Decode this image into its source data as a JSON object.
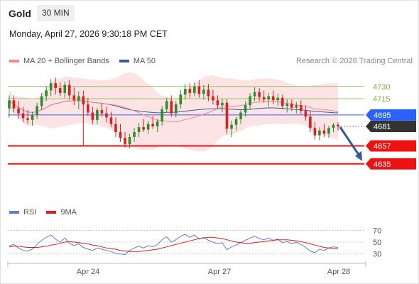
{
  "header": {
    "instrument": "Gold",
    "timeframe": "30 MIN",
    "datetime": "Monday, April 27, 2026 9:30:18 PM CET",
    "credit": "Research © 2026 Trading Central"
  },
  "legend": {
    "items": [
      {
        "label": "MA 20 + Bollinger Bands",
        "color": "#f08a8a"
      },
      {
        "label": "MA 50",
        "color": "#3a5a9a"
      }
    ]
  },
  "rsi_legend": {
    "items": [
      {
        "label": "RSI",
        "color": "#5b7fd6"
      },
      {
        "label": "9MA",
        "color": "#e31a1a"
      }
    ]
  },
  "colors": {
    "up_candle": "#2e8b2e",
    "down_candle": "#d92020",
    "band_fill": "#fde1e1",
    "ma20": "#f08a8a",
    "ma50": "#3a5a9a",
    "pivot": "#2962ff",
    "support": "#ee1111",
    "resistance": "#7cb342",
    "last_price": "#333333",
    "arrow": "#2e5c9a",
    "rsi": "#5b7fd6",
    "rsi_ma": "#e31a1a"
  },
  "chart_data": [
    {
      "type": "candlestick",
      "x_tick_labels": [
        "Apr 24",
        "Apr 27",
        "Apr 28"
      ],
      "ylim": [
        4620,
        4742
      ],
      "levels": [
        {
          "label": "4730",
          "value": 4730,
          "kind": "resistance"
        },
        {
          "label": "4715",
          "value": 4715,
          "kind": "resistance"
        },
        {
          "label": "4695",
          "value": 4695,
          "kind": "pivot"
        },
        {
          "label": "4681",
          "value": 4681,
          "kind": "last"
        },
        {
          "label": "4657",
          "value": 4657,
          "kind": "support"
        },
        {
          "label": "4635",
          "value": 4635,
          "kind": "support"
        }
      ],
      "forecast_arrow": {
        "from": 4681,
        "to": 4635
      },
      "series": [
        {
          "name": "MA 20 + Bollinger Bands"
        },
        {
          "name": "MA 50"
        }
      ],
      "ohlc": [
        [
          4703,
          4719,
          4692,
          4713
        ],
        [
          4713,
          4718,
          4698,
          4703
        ],
        [
          4703,
          4712,
          4690,
          4697
        ],
        [
          4697,
          4705,
          4686,
          4691
        ],
        [
          4691,
          4701,
          4684,
          4689
        ],
        [
          4689,
          4699,
          4682,
          4695
        ],
        [
          4695,
          4710,
          4690,
          4706
        ],
        [
          4706,
          4722,
          4701,
          4718
        ],
        [
          4718,
          4730,
          4712,
          4725
        ],
        [
          4725,
          4739,
          4718,
          4734
        ],
        [
          4734,
          4741,
          4720,
          4728
        ],
        [
          4728,
          4735,
          4718,
          4722
        ],
        [
          4722,
          4736,
          4716,
          4732
        ],
        [
          4732,
          4738,
          4714,
          4719
        ],
        [
          4719,
          4729,
          4707,
          4713
        ],
        [
          4713,
          4724,
          4702,
          4718
        ],
        [
          4718,
          4725,
          4657,
          4708
        ],
        [
          4708,
          4716,
          4694,
          4698
        ],
        [
          4698,
          4705,
          4684,
          4689
        ],
        [
          4689,
          4704,
          4684,
          4701
        ],
        [
          4701,
          4709,
          4693,
          4697
        ],
        [
          4697,
          4705,
          4686,
          4692
        ],
        [
          4692,
          4699,
          4680,
          4684
        ],
        [
          4684,
          4692,
          4668,
          4674
        ],
        [
          4674,
          4684,
          4662,
          4667
        ],
        [
          4667,
          4674,
          4655,
          4659
        ],
        [
          4659,
          4672,
          4654,
          4668
        ],
        [
          4668,
          4679,
          4662,
          4674
        ],
        [
          4674,
          4685,
          4668,
          4680
        ],
        [
          4680,
          4690,
          4674,
          4677
        ],
        [
          4677,
          4688,
          4672,
          4684
        ],
        [
          4684,
          4694,
          4678,
          4681
        ],
        [
          4681,
          4690,
          4674,
          4687
        ],
        [
          4687,
          4706,
          4682,
          4702
        ],
        [
          4702,
          4716,
          4698,
          4712
        ],
        [
          4712,
          4719,
          4693,
          4697
        ],
        [
          4697,
          4712,
          4692,
          4708
        ],
        [
          4708,
          4726,
          4703,
          4720
        ],
        [
          4720,
          4733,
          4714,
          4727
        ],
        [
          4727,
          4734,
          4716,
          4722
        ],
        [
          4722,
          4735,
          4718,
          4730
        ],
        [
          4730,
          4738,
          4716,
          4721
        ],
        [
          4721,
          4732,
          4714,
          4726
        ],
        [
          4726,
          4733,
          4712,
          4718
        ],
        [
          4718,
          4726,
          4708,
          4713
        ],
        [
          4713,
          4719,
          4702,
          4707
        ],
        [
          4707,
          4715,
          4698,
          4710
        ],
        [
          4710,
          4714,
          4672,
          4678
        ],
        [
          4678,
          4688,
          4668,
          4683
        ],
        [
          4683,
          4693,
          4676,
          4690
        ],
        [
          4690,
          4702,
          4684,
          4698
        ],
        [
          4698,
          4712,
          4693,
          4707
        ],
        [
          4707,
          4722,
          4702,
          4718
        ],
        [
          4718,
          4729,
          4712,
          4723
        ],
        [
          4723,
          4728,
          4712,
          4717
        ],
        [
          4717,
          4725,
          4710,
          4714
        ],
        [
          4714,
          4722,
          4706,
          4718
        ],
        [
          4718,
          4725,
          4708,
          4713
        ],
        [
          4713,
          4721,
          4706,
          4716
        ],
        [
          4716,
          4720,
          4702,
          4706
        ],
        [
          4706,
          4714,
          4698,
          4709
        ],
        [
          4709,
          4714,
          4700,
          4704
        ],
        [
          4704,
          4711,
          4697,
          4707
        ],
        [
          4707,
          4713,
          4696,
          4700
        ],
        [
          4700,
          4707,
          4688,
          4693
        ],
        [
          4693,
          4700,
          4674,
          4679
        ],
        [
          4679,
          4686,
          4665,
          4670
        ],
        [
          4670,
          4680,
          4664,
          4676
        ],
        [
          4676,
          4684,
          4668,
          4672
        ],
        [
          4672,
          4682,
          4667,
          4679
        ],
        [
          4679,
          4685,
          4674,
          4683
        ],
        [
          4683,
          4686,
          4676,
          4681
        ]
      ]
    },
    {
      "type": "line",
      "name": "RSI",
      "y_tick_labels": [
        "70",
        "50",
        "30"
      ],
      "ylim": [
        20,
        80
      ],
      "series": [
        {
          "name": "RSI",
          "values": [
            44,
            46,
            40,
            36,
            35,
            38,
            46,
            53,
            58,
            62,
            55,
            50,
            57,
            48,
            44,
            47,
            41,
            38,
            36,
            40,
            38,
            36,
            34,
            31,
            30,
            29,
            36,
            40,
            43,
            40,
            44,
            42,
            46,
            54,
            59,
            50,
            54,
            60,
            63,
            58,
            62,
            55,
            58,
            53,
            50,
            47,
            49,
            37,
            42,
            45,
            49,
            53,
            57,
            60,
            56,
            54,
            57,
            53,
            55,
            49,
            51,
            47,
            50,
            46,
            41,
            35,
            32,
            38,
            36,
            40,
            42,
            41
          ]
        },
        {
          "name": "9MA",
          "values": [
            42,
            43,
            43,
            42,
            41,
            41,
            41,
            42,
            43,
            45,
            46,
            48,
            50,
            51,
            50,
            49,
            48,
            47,
            45,
            44,
            42,
            40,
            39,
            38,
            36,
            35,
            34,
            34,
            34,
            35,
            36,
            37,
            38,
            40,
            42,
            44,
            46,
            48,
            50,
            52,
            54,
            56,
            57,
            58,
            58,
            57,
            56,
            54,
            52,
            50,
            49,
            48,
            48,
            49,
            50,
            51,
            52,
            53,
            54,
            54,
            54,
            53,
            52,
            51,
            49,
            47,
            45,
            43,
            41,
            40,
            39,
            39
          ]
        }
      ]
    }
  ]
}
